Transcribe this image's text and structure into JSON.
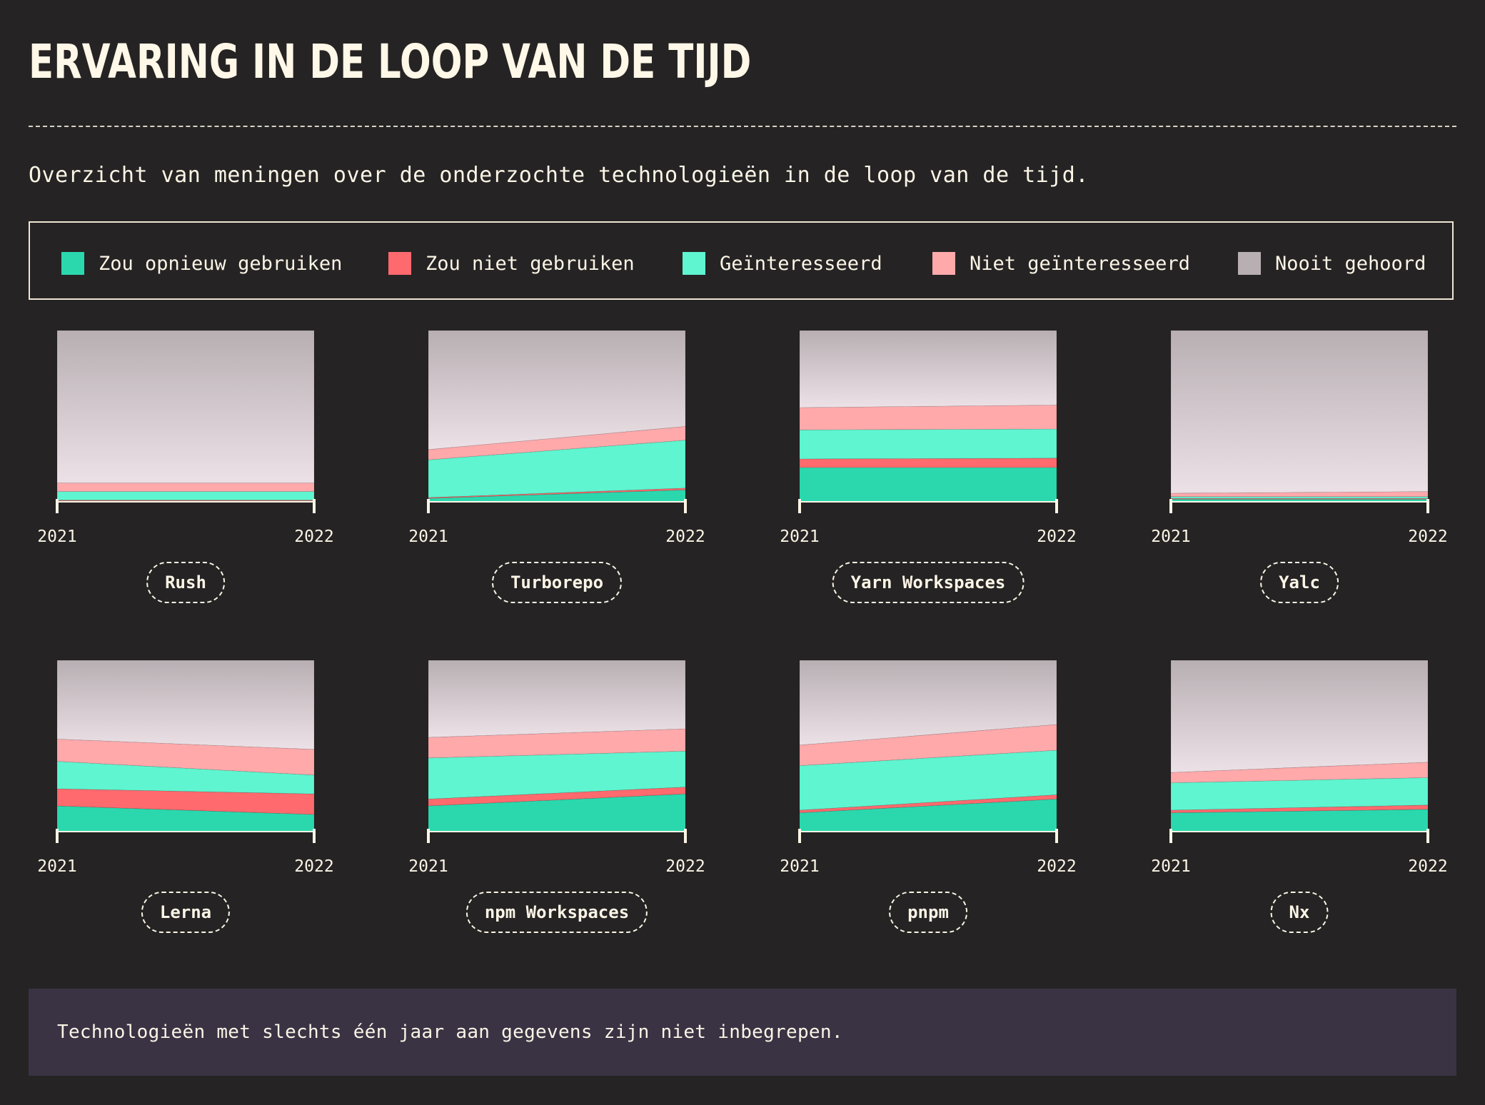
{
  "header": {
    "title": "Ervaring in de loop van de tijd",
    "subtitle": "Overzicht van meningen over de onderzochte technologieën in de loop van de tijd."
  },
  "legend": [
    {
      "key": "would_use",
      "label": "Zou opnieuw gebruiken",
      "color": "#2bd8ae"
    },
    {
      "key": "would_not_use",
      "label": "Zou niet gebruiken",
      "color": "#ff6a6e"
    },
    {
      "key": "interested",
      "label": "Geïnteresseerd",
      "color": "#5ff5d0"
    },
    {
      "key": "not_interested",
      "label": "Niet geïnteresseerd",
      "color": "#ffa9ab"
    },
    {
      "key": "never_heard",
      "label": "Nooit gehoord",
      "color": "#b8afb3"
    }
  ],
  "chart_data": [
    {
      "type": "area",
      "title": "Rush",
      "x": [
        "2021",
        "2022"
      ],
      "ylim": [
        0,
        100
      ],
      "series": [
        {
          "name": "Zou opnieuw gebruiken",
          "values": [
            0.5,
            0.5
          ]
        },
        {
          "name": "Zou niet gebruiken",
          "values": [
            0.5,
            0.5
          ]
        },
        {
          "name": "Geïnteresseerd",
          "values": [
            5,
            5
          ]
        },
        {
          "name": "Niet geïnteresseerd",
          "values": [
            5,
            5
          ]
        },
        {
          "name": "Nooit gehoord",
          "values": [
            89,
            89
          ]
        }
      ]
    },
    {
      "type": "area",
      "title": "Turborepo",
      "x": [
        "2021",
        "2022"
      ],
      "ylim": [
        0,
        100
      ],
      "series": [
        {
          "name": "Zou opnieuw gebruiken",
          "values": [
            2,
            7
          ]
        },
        {
          "name": "Zou niet gebruiken",
          "values": [
            0.5,
            1
          ]
        },
        {
          "name": "Geïnteresseerd",
          "values": [
            22,
            28
          ]
        },
        {
          "name": "Niet geïnteresseerd",
          "values": [
            6,
            8
          ]
        },
        {
          "name": "Nooit gehoord",
          "values": [
            69.5,
            56
          ]
        }
      ]
    },
    {
      "type": "area",
      "title": "Yarn Workspaces",
      "x": [
        "2021",
        "2022"
      ],
      "ylim": [
        0,
        100
      ],
      "series": [
        {
          "name": "Zou opnieuw gebruiken",
          "values": [
            20,
            20
          ]
        },
        {
          "name": "Zou niet gebruiken",
          "values": [
            5,
            5.5
          ]
        },
        {
          "name": "Geïnteresseerd",
          "values": [
            17,
            17
          ]
        },
        {
          "name": "Niet geïnteresseerd",
          "values": [
            13,
            14
          ]
        },
        {
          "name": "Nooit gehoord",
          "values": [
            45,
            43.5
          ]
        }
      ]
    },
    {
      "type": "area",
      "title": "Yalc",
      "x": [
        "2021",
        "2022"
      ],
      "ylim": [
        0,
        100
      ],
      "series": [
        {
          "name": "Zou opnieuw gebruiken",
          "values": [
            1.5,
            1.5
          ]
        },
        {
          "name": "Zou niet gebruiken",
          "values": [
            0.5,
            0.5
          ]
        },
        {
          "name": "Geïnteresseerd",
          "values": [
            1,
            1
          ]
        },
        {
          "name": "Niet geïnteresseerd",
          "values": [
            2,
            3
          ]
        },
        {
          "name": "Nooit gehoord",
          "values": [
            95,
            94
          ]
        }
      ]
    },
    {
      "type": "area",
      "title": "Lerna",
      "x": [
        "2021",
        "2022"
      ],
      "ylim": [
        0,
        100
      ],
      "series": [
        {
          "name": "Zou opnieuw gebruiken",
          "values": [
            15,
            10
          ]
        },
        {
          "name": "Zou niet gebruiken",
          "values": [
            10,
            12
          ]
        },
        {
          "name": "Geïnteresseerd",
          "values": [
            16,
            11
          ]
        },
        {
          "name": "Niet geïnteresseerd",
          "values": [
            13,
            15
          ]
        },
        {
          "name": "Nooit gehoord",
          "values": [
            46,
            52
          ]
        }
      ]
    },
    {
      "type": "area",
      "title": "npm Workspaces",
      "x": [
        "2021",
        "2022"
      ],
      "ylim": [
        0,
        100
      ],
      "series": [
        {
          "name": "Zou opnieuw gebruiken",
          "values": [
            15,
            22
          ]
        },
        {
          "name": "Zou niet gebruiken",
          "values": [
            4,
            4
          ]
        },
        {
          "name": "Geïnteresseerd",
          "values": [
            24,
            21
          ]
        },
        {
          "name": "Niet geïnteresseerd",
          "values": [
            12,
            13
          ]
        },
        {
          "name": "Nooit gehoord",
          "values": [
            45,
            40
          ]
        }
      ]
    },
    {
      "type": "area",
      "title": "pnpm",
      "x": [
        "2021",
        "2022"
      ],
      "ylim": [
        0,
        100
      ],
      "series": [
        {
          "name": "Zou opnieuw gebruiken",
          "values": [
            11,
            19
          ]
        },
        {
          "name": "Zou niet gebruiken",
          "values": [
            1.5,
            2.5
          ]
        },
        {
          "name": "Geïnteresseerd",
          "values": [
            26,
            26
          ]
        },
        {
          "name": "Niet geïnteresseerd",
          "values": [
            12,
            15
          ]
        },
        {
          "name": "Nooit gehoord",
          "values": [
            49.5,
            37.5
          ]
        }
      ]
    },
    {
      "type": "area",
      "title": "Nx",
      "x": [
        "2021",
        "2022"
      ],
      "ylim": [
        0,
        100
      ],
      "series": [
        {
          "name": "Zou opnieuw gebruiken",
          "values": [
            11,
            13
          ]
        },
        {
          "name": "Zou niet gebruiken",
          "values": [
            1.5,
            2.5
          ]
        },
        {
          "name": "Geïnteresseerd",
          "values": [
            16,
            16
          ]
        },
        {
          "name": "Niet geïnteresseerd",
          "values": [
            6,
            9
          ]
        },
        {
          "name": "Nooit gehoord",
          "values": [
            65.5,
            59.5
          ]
        }
      ]
    }
  ],
  "footer": {
    "note": "Technologieën met slechts één jaar aan gegevens zijn niet inbegrepen."
  }
}
